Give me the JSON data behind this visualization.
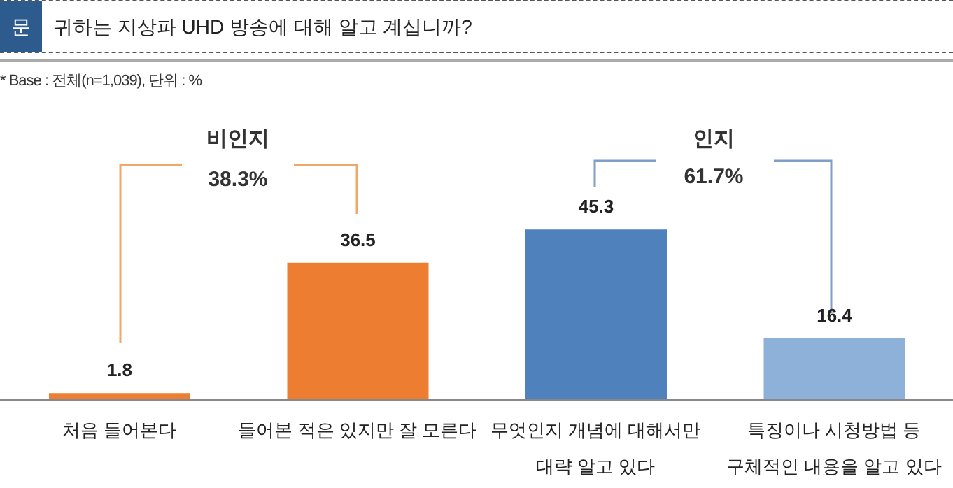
{
  "chart_data": {
    "type": "bar",
    "title": "귀하는 지상파 UHD 방송에 대해 알고 계십니까?",
    "subtitle": "* Base : 전체(n=1,039), 단위 : %",
    "categories": [
      "처음 들어본다",
      "들어본 적은 있지만 잘 모른다",
      "무엇인지 개념에 대해서만 대략 알고 있다",
      "특징이나 시청방법 등 구체적인 내용을 알고 있다"
    ],
    "values": [
      1.8,
      36.5,
      45.3,
      16.4
    ],
    "colors": [
      "#ed7d31",
      "#ed7d31",
      "#4f81bd",
      "#8eb1da"
    ],
    "data_labels": true,
    "annotations": [
      "문",
      "비인지",
      "38.3%",
      "인지",
      "61.7%"
    ]
  }
}
